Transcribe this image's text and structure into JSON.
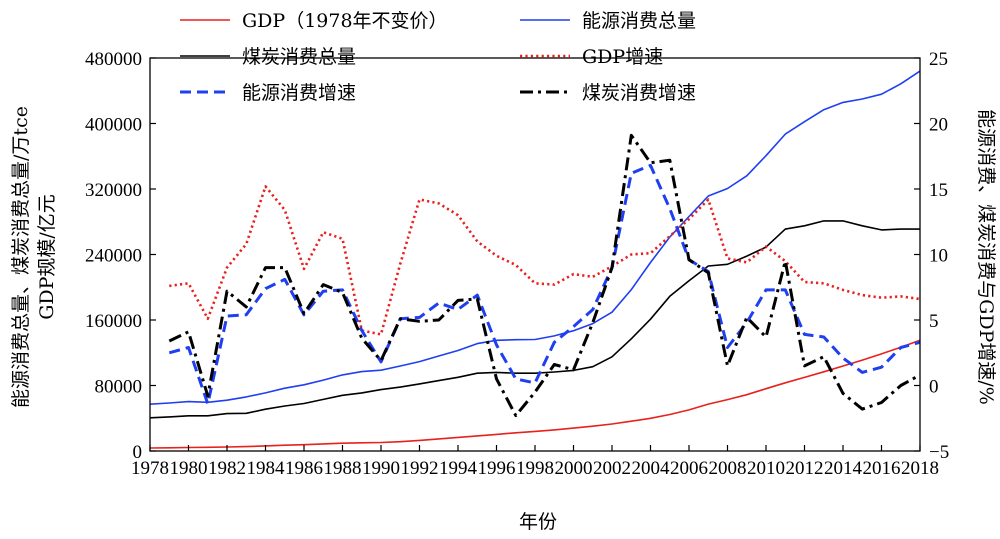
{
  "chart_data": {
    "type": "line",
    "xlabel": "年份",
    "ylabel_left": "能源消费总量、煤炭消费总量/万tce GDP规模/亿元",
    "ylabel_left_lines": [
      "能源消费总量、煤炭消费总量/万tce",
      "GDP规模/亿元"
    ],
    "ylabel_right": "能源消费、煤炭消费与GDP增速/%",
    "xlim": [
      1978,
      2018
    ],
    "ylim_left": [
      0,
      480000
    ],
    "ylim_right": [
      -5,
      25
    ],
    "x_ticks": [
      "1978",
      "1980",
      "1982",
      "1984",
      "1986",
      "1988",
      "1990",
      "1992",
      "1994",
      "1996",
      "1998",
      "2000",
      "2002",
      "2004",
      "2006",
      "2008",
      "2010",
      "2012",
      "2014",
      "2016",
      "2018"
    ],
    "y_left_ticks": [
      "0",
      "80000",
      "160000",
      "240000",
      "320000",
      "400000",
      "480000"
    ],
    "y_right_ticks": [
      "−5",
      "0",
      "5",
      "10",
      "15",
      "20",
      "25"
    ],
    "legend_position": "top",
    "series": [
      {
        "name": "GDP（1978年不变价）",
        "axis": "left",
        "color": "#e8211d",
        "dash": "solid",
        "x": [
          1978,
          1979,
          1980,
          1981,
          1982,
          1983,
          1984,
          1985,
          1986,
          1987,
          1988,
          1989,
          1990,
          1991,
          1992,
          1993,
          1994,
          1995,
          1996,
          1997,
          1998,
          1999,
          2000,
          2001,
          2002,
          2003,
          2004,
          2005,
          2006,
          2007,
          2008,
          2009,
          2010,
          2011,
          2012,
          2013,
          2014,
          2015,
          2016,
          2017,
          2018
        ],
        "values": [
          3678,
          3958,
          4267,
          4490,
          4896,
          5427,
          6251,
          7092,
          7719,
          8611,
          9584,
          9974,
          10358,
          11310,
          12921,
          14726,
          16652,
          18470,
          20319,
          22208,
          23945,
          25787,
          27964,
          30283,
          33036,
          36346,
          39993,
          44535,
          50182,
          57314,
          62828,
          68730,
          76039,
          83302,
          89840,
          96768,
          103822,
          111069,
          118617,
          126776,
          135217
        ]
      },
      {
        "name": "能源消费总量",
        "axis": "left",
        "color": "#1f3ff0",
        "dash": "solid",
        "x": [
          1978,
          1979,
          1980,
          1981,
          1982,
          1983,
          1984,
          1985,
          1986,
          1987,
          1988,
          1989,
          1990,
          1991,
          1992,
          1993,
          1994,
          1995,
          1996,
          1997,
          1998,
          1999,
          2000,
          2001,
          2002,
          2003,
          2004,
          2005,
          2006,
          2007,
          2008,
          2009,
          2010,
          2011,
          2012,
          2013,
          2014,
          2015,
          2016,
          2017,
          2018
        ],
        "values": [
          57144,
          58588,
          60275,
          59447,
          62067,
          66040,
          70904,
          76682,
          80850,
          86632,
          92997,
          96934,
          98703,
          103783,
          109170,
          115993,
          122737,
          131176,
          135192,
          135909,
          136184,
          140569,
          146964,
          155547,
          169577,
          197083,
          230281,
          261369,
          286467,
          311442,
          320611,
          336126,
          360648,
          387043,
          402138,
          416913,
          425806,
          429905,
          435819,
          448529,
          464000
        ]
      },
      {
        "name": "煤炭消费总量",
        "axis": "left",
        "color": "#000000",
        "dash": "solid",
        "x": [
          1978,
          1979,
          1980,
          1981,
          1982,
          1983,
          1984,
          1985,
          1986,
          1987,
          1988,
          1989,
          1990,
          1991,
          1992,
          1993,
          1994,
          1995,
          1996,
          1997,
          1998,
          1999,
          2000,
          2001,
          2002,
          2003,
          2004,
          2005,
          2006,
          2007,
          2008,
          2009,
          2010,
          2011,
          2012,
          2013,
          2014,
          2015,
          2016,
          2017,
          2018
        ],
        "values": [
          40500,
          41666,
          43000,
          43000,
          45700,
          46000,
          51000,
          55000,
          58000,
          63000,
          68000,
          71000,
          75000,
          78000,
          82000,
          86000,
          90000,
          95000,
          96000,
          95000,
          95000,
          96500,
          98500,
          103000,
          115000,
          137000,
          161000,
          189000,
          208000,
          226000,
          228000,
          238000,
          249000,
          271000,
          275000,
          281000,
          281000,
          275000,
          270000,
          271000,
          271000
        ]
      },
      {
        "name": "GDP增速",
        "axis": "right",
        "color": "#e8211d",
        "dash": "dotted",
        "x": [
          1979,
          1980,
          1981,
          1982,
          1983,
          1984,
          1985,
          1986,
          1987,
          1988,
          1989,
          1990,
          1991,
          1992,
          1993,
          1994,
          1995,
          1996,
          1997,
          1998,
          1999,
          2000,
          2001,
          2002,
          2003,
          2004,
          2005,
          2006,
          2007,
          2008,
          2009,
          2010,
          2011,
          2012,
          2013,
          2014,
          2015,
          2016,
          2017,
          2018
        ],
        "values": [
          7.6,
          7.8,
          5.1,
          9.0,
          10.8,
          15.2,
          13.4,
          8.9,
          11.7,
          11.2,
          4.2,
          3.9,
          9.3,
          14.2,
          13.9,
          13.0,
          11.0,
          9.9,
          9.2,
          7.8,
          7.7,
          8.5,
          8.3,
          9.1,
          10.0,
          10.1,
          11.4,
          12.7,
          14.2,
          9.7,
          9.4,
          10.6,
          9.5,
          7.9,
          7.8,
          7.3,
          6.9,
          6.7,
          6.8,
          6.6
        ]
      },
      {
        "name": "能源消费增速",
        "axis": "right",
        "color": "#1f3ff0",
        "dash": "dashed",
        "x": [
          1979,
          1980,
          1981,
          1982,
          1983,
          1984,
          1985,
          1986,
          1987,
          1988,
          1989,
          1990,
          1991,
          1992,
          1993,
          1994,
          1995,
          1996,
          1997,
          1998,
          1999,
          2000,
          2001,
          2002,
          2003,
          2004,
          2005,
          2006,
          2007,
          2008,
          2009,
          2010,
          2011,
          2012,
          2013,
          2014,
          2015,
          2016,
          2017,
          2018
        ],
        "values": [
          2.5,
          2.9,
          -1.4,
          5.3,
          5.4,
          7.4,
          8.1,
          5.4,
          7.2,
          7.3,
          4.2,
          1.8,
          5.1,
          5.2,
          6.3,
          5.8,
          6.9,
          3.1,
          0.5,
          0.2,
          3.3,
          4.5,
          5.8,
          9.0,
          16.2,
          16.8,
          13.5,
          9.6,
          8.7,
          2.9,
          4.8,
          7.3,
          7.3,
          3.9,
          3.7,
          2.1,
          1.0,
          1.4,
          2.9,
          3.3
        ]
      },
      {
        "name": "煤炭消费增速",
        "axis": "right",
        "color": "#000000",
        "dash": "dashdot",
        "x": [
          1979,
          1980,
          1981,
          1982,
          1983,
          1984,
          1985,
          1986,
          1987,
          1988,
          1989,
          1990,
          1991,
          1992,
          1993,
          1994,
          1995,
          1996,
          1997,
          1998,
          1999,
          2000,
          2001,
          2002,
          2003,
          2004,
          2005,
          2006,
          2007,
          2008,
          2009,
          2010,
          2011,
          2012,
          2013,
          2014,
          2015,
          2016,
          2017,
          2018
        ],
        "values": [
          3.4,
          4.1,
          -0.8,
          7.2,
          6.0,
          9.0,
          9.0,
          5.5,
          7.7,
          7.1,
          3.6,
          1.9,
          5.1,
          4.9,
          5.0,
          6.5,
          6.6,
          0.5,
          -2.3,
          -0.5,
          1.6,
          1.2,
          4.8,
          9.0,
          19.1,
          17.0,
          17.2,
          9.6,
          8.6,
          1.5,
          5.2,
          3.7,
          9.5,
          1.5,
          2.2,
          -0.6,
          -1.8,
          -1.3,
          0.0,
          0.8
        ]
      }
    ]
  }
}
